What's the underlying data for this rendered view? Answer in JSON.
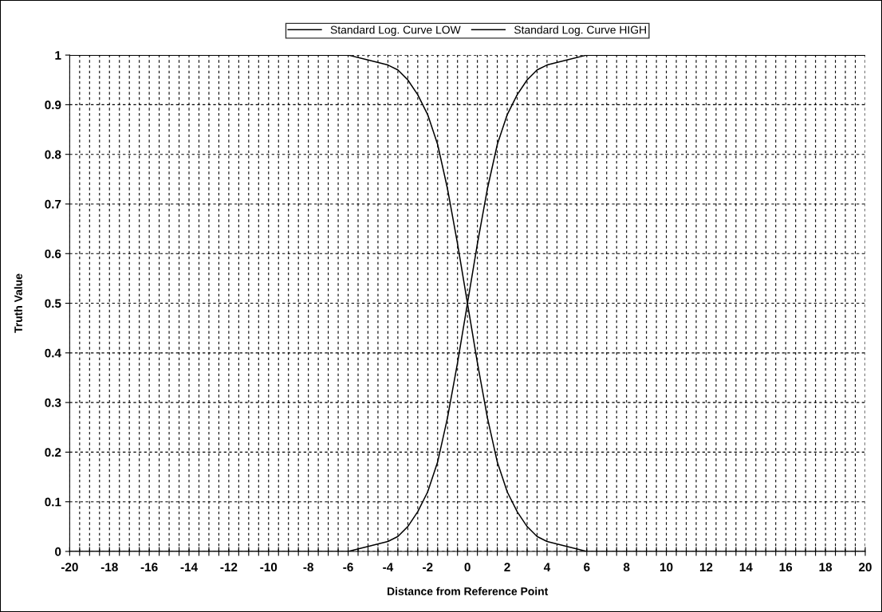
{
  "chart_data": {
    "type": "line",
    "xlabel": "Distance from Reference Point",
    "ylabel": "Truth Value",
    "xlim": [
      -20,
      20
    ],
    "ylim": [
      0,
      1
    ],
    "xticks": [
      -20,
      {
        "value": -19.5,
        "label": null
      },
      {
        "value": -19,
        "label": null
      },
      {
        "value": -18.5,
        "label": null
      },
      -18,
      {
        "value": -17.5,
        "label": null
      },
      {
        "value": -17,
        "label": null
      },
      {
        "value": -16.5,
        "label": null
      },
      -16,
      {
        "value": -15.5,
        "label": null
      },
      {
        "value": -15,
        "label": null
      },
      {
        "value": -14.5,
        "label": null
      },
      -14,
      {
        "value": -13.5,
        "label": null
      },
      {
        "value": -13,
        "label": null
      },
      {
        "value": -12.5,
        "label": null
      },
      -12,
      {
        "value": -11.5,
        "label": null
      },
      {
        "value": -11,
        "label": null
      },
      {
        "value": -10.5,
        "label": null
      },
      -10,
      {
        "value": -9.5,
        "label": null
      },
      {
        "value": -9,
        "label": null
      },
      {
        "value": -8.5,
        "label": null
      },
      -8,
      {
        "value": -7.5,
        "label": null
      },
      {
        "value": -7,
        "label": null
      },
      {
        "value": -6.5,
        "label": null
      },
      -6,
      {
        "value": -5.5,
        "label": null
      },
      {
        "value": -5,
        "label": null
      },
      {
        "value": -4.5,
        "label": null
      },
      -4,
      {
        "value": -3.5,
        "label": null
      },
      {
        "value": -3,
        "label": null
      },
      {
        "value": -2.5,
        "label": null
      },
      -2,
      {
        "value": -1.5,
        "label": null
      },
      {
        "value": -1,
        "label": null
      },
      {
        "value": -0.5,
        "label": null
      },
      0,
      {
        "value": 0.5,
        "label": null
      },
      {
        "value": 1,
        "label": null
      },
      {
        "value": 1.5,
        "label": null
      },
      2,
      {
        "value": 2.5,
        "label": null
      },
      {
        "value": 3,
        "label": null
      },
      {
        "value": 3.5,
        "label": null
      },
      4,
      {
        "value": 4.5,
        "label": null
      },
      {
        "value": 5,
        "label": null
      },
      {
        "value": 5.5,
        "label": null
      },
      6,
      {
        "value": 6.5,
        "label": null
      },
      {
        "value": 7,
        "label": null
      },
      {
        "value": 7.5,
        "label": null
      },
      8,
      {
        "value": 8.5,
        "label": null
      },
      {
        "value": 9,
        "label": null
      },
      {
        "value": 9.5,
        "label": null
      },
      10,
      {
        "value": 10.5,
        "label": null
      },
      {
        "value": 11,
        "label": null
      },
      {
        "value": 11.5,
        "label": null
      },
      12,
      {
        "value": 12.5,
        "label": null
      },
      {
        "value": 13,
        "label": null
      },
      {
        "value": 13.5,
        "label": null
      },
      14,
      {
        "value": 14.5,
        "label": null
      },
      {
        "value": 15,
        "label": null
      },
      {
        "value": 15.5,
        "label": null
      },
      16,
      {
        "value": 16.5,
        "label": null
      },
      {
        "value": 17,
        "label": null
      },
      {
        "value": 17.5,
        "label": null
      },
      18,
      {
        "value": 18.5,
        "label": null
      },
      {
        "value": 19,
        "label": null
      },
      {
        "value": 19.5,
        "label": null
      },
      20
    ],
    "yticks": [
      0,
      0.1,
      0.2,
      0.3,
      0.4,
      0.5,
      0.6,
      0.7,
      0.8,
      0.9,
      1
    ],
    "x": [
      -20,
      -10,
      -8,
      -7,
      -6,
      -5,
      -4,
      -3.5,
      -3,
      -2.5,
      -2,
      -1.5,
      -1,
      -0.5,
      0,
      0.5,
      1,
      1.5,
      2,
      2.5,
      3,
      3.5,
      4,
      5,
      6,
      7,
      8,
      10,
      20
    ],
    "series": [
      {
        "name": "Standard Log. Curve LOW",
        "color": "#000000",
        "values": [
          1,
          1,
          1,
          1,
          1,
          0.99,
          0.98,
          0.97,
          0.95,
          0.92,
          0.88,
          0.82,
          0.73,
          0.62,
          0.5,
          0.38,
          0.27,
          0.18,
          0.12,
          0.08,
          0.05,
          0.03,
          0.02,
          0.01,
          0,
          0,
          0,
          0,
          0
        ]
      },
      {
        "name": "Standard Log. Curve HIGH",
        "color": "#000000",
        "values": [
          0,
          0,
          0,
          0,
          0,
          0.01,
          0.02,
          0.03,
          0.05,
          0.08,
          0.12,
          0.18,
          0.27,
          0.38,
          0.5,
          0.62,
          0.73,
          0.82,
          0.88,
          0.92,
          0.95,
          0.97,
          0.98,
          0.99,
          1,
          1,
          1,
          1,
          1
        ]
      }
    ],
    "grid": true,
    "legend": "top"
  }
}
